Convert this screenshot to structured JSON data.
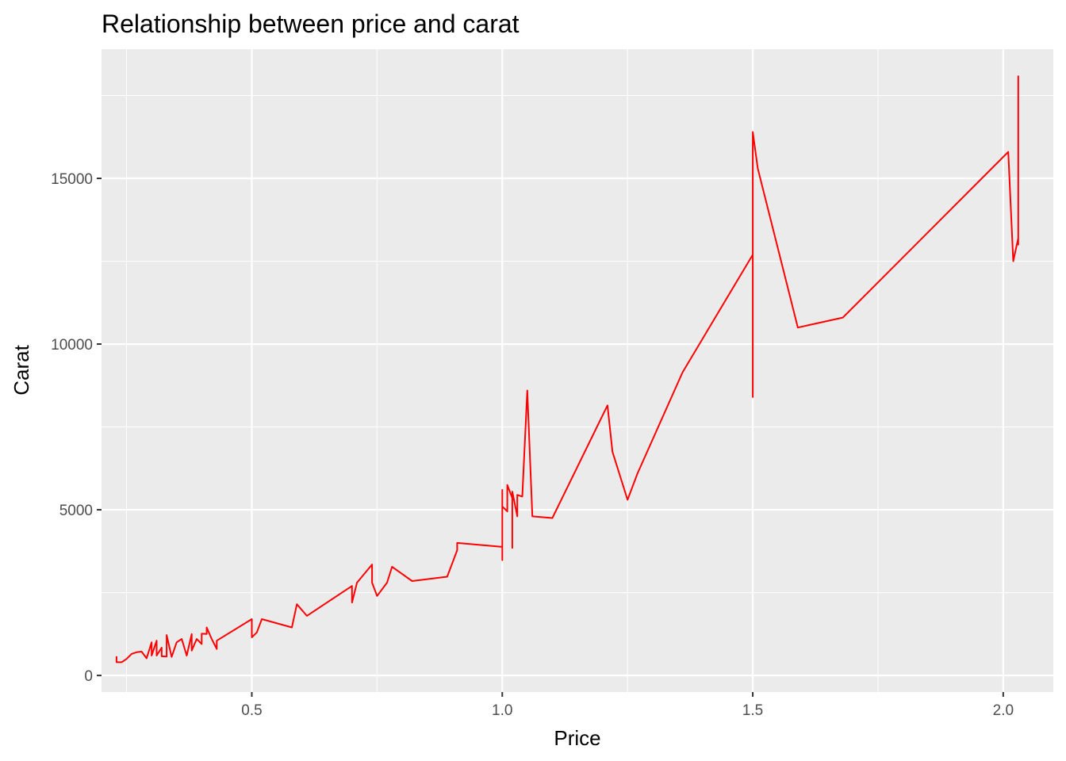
{
  "chart_data": {
    "type": "line",
    "title": "Relationship between price and carat",
    "xlabel": "Price",
    "ylabel": "Carat",
    "xlim": [
      0.2,
      2.1
    ],
    "ylim": [
      -500,
      18900
    ],
    "x_ticks": [
      0.5,
      1.0,
      1.5,
      2.0
    ],
    "x_tick_labels": [
      "0.5",
      "1.0",
      "1.5",
      "2.0"
    ],
    "y_ticks": [
      0,
      5000,
      10000,
      15000
    ],
    "y_tick_labels": [
      "0",
      "5000",
      "10000",
      "15000"
    ],
    "grid": true,
    "legend": "none",
    "colors": {
      "line": "#ff0000",
      "panel": "#ebebeb",
      "grid": "#ffffff"
    },
    "series": [
      {
        "values_x": [
          0.23,
          0.23,
          0.24,
          0.25,
          0.26,
          0.27,
          0.28,
          0.29,
          0.3,
          0.3,
          0.31,
          0.31,
          0.32,
          0.32,
          0.33,
          0.33,
          0.34,
          0.35,
          0.36,
          0.37,
          0.38,
          0.38,
          0.39,
          0.4,
          0.4,
          0.41,
          0.41,
          0.42,
          0.43,
          0.43,
          0.5,
          0.5,
          0.51,
          0.52,
          0.58,
          0.59,
          0.61,
          0.7,
          0.7,
          0.71,
          0.74,
          0.74,
          0.75,
          0.77,
          0.78,
          0.82,
          0.89,
          0.91,
          0.91,
          1.0,
          1.0,
          1.0,
          1.0,
          1.01,
          1.01,
          1.02,
          1.02,
          1.02,
          1.03,
          1.03,
          1.04,
          1.05,
          1.06,
          1.1,
          1.21,
          1.22,
          1.25,
          1.27,
          1.36,
          1.5,
          1.5,
          1.5,
          1.51,
          1.59,
          1.68,
          2.01,
          2.02,
          2.03,
          2.03,
          2.03
        ],
        "values_y": [
          580,
          400,
          400,
          500,
          650,
          700,
          720,
          520,
          1000,
          600,
          1050,
          600,
          840,
          580,
          570,
          1220,
          560,
          1000,
          1100,
          600,
          1250,
          750,
          1100,
          950,
          1260,
          1250,
          1450,
          1100,
          800,
          1050,
          1700,
          1150,
          1300,
          1700,
          1450,
          2150,
          1800,
          2700,
          2200,
          2800,
          3350,
          2800,
          2400,
          2800,
          3280,
          2850,
          2980,
          3780,
          4000,
          3880,
          3480,
          5600,
          5100,
          4950,
          5750,
          5350,
          3850,
          5550,
          4800,
          5450,
          5400,
          8600,
          4800,
          4750,
          8150,
          6750,
          5300,
          6100,
          9150,
          12700,
          8400,
          16400,
          15300,
          10500,
          10800,
          15800,
          12500,
          13200,
          13000,
          18100
        ]
      }
    ]
  }
}
